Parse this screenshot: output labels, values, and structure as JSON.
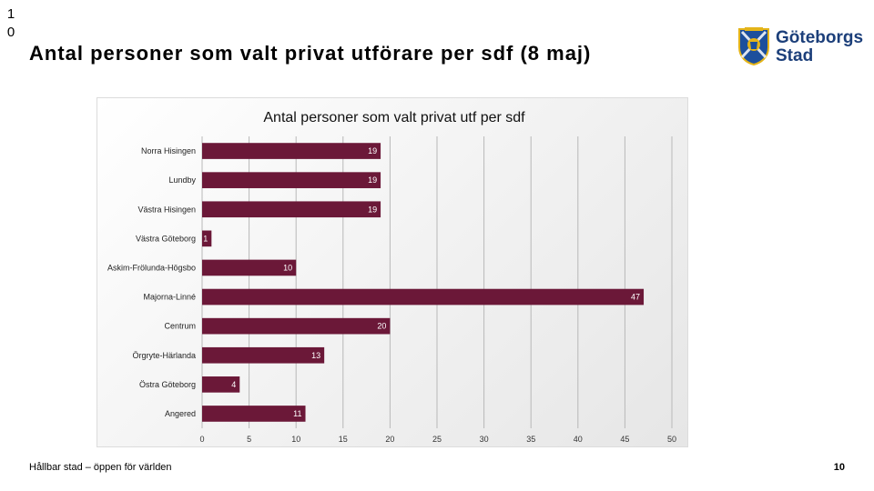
{
  "slide": {
    "number_top": "1\n0",
    "title": "Antal personer som valt privat utförare per sdf (8 maj)",
    "logo": {
      "line1": "Göteborgs",
      "line2": "Stad",
      "icon": "goteborg-crest-icon"
    },
    "footer": "Hållbar stad – öppen för världen",
    "page_number": "10"
  },
  "colors": {
    "bar": "#6b1838",
    "grid": "#b8b8b8",
    "axis_text": "#333333"
  },
  "chart_data": {
    "type": "bar",
    "orientation": "horizontal",
    "title": "Antal personer som valt privat utf per sdf",
    "categories": [
      "Norra Hisingen",
      "Lundby",
      "Västra Hisingen",
      "Västra Göteborg",
      "Askim-Frölunda-Högsbo",
      "Majorna-Linné",
      "Centrum",
      "Örgryte-Härlanda",
      "Östra Göteborg",
      "Angered"
    ],
    "values": [
      19,
      19,
      19,
      1,
      10,
      47,
      20,
      13,
      4,
      11
    ],
    "data_labels": [
      "19",
      "19",
      "19",
      "1",
      "10",
      "47",
      "20",
      "13",
      "4",
      "11"
    ],
    "xlim": [
      0,
      50
    ],
    "xticks": [
      "0",
      "5",
      "10",
      "15",
      "20",
      "25",
      "30",
      "35",
      "40",
      "45",
      "50"
    ],
    "grid": true,
    "legend": "none"
  }
}
